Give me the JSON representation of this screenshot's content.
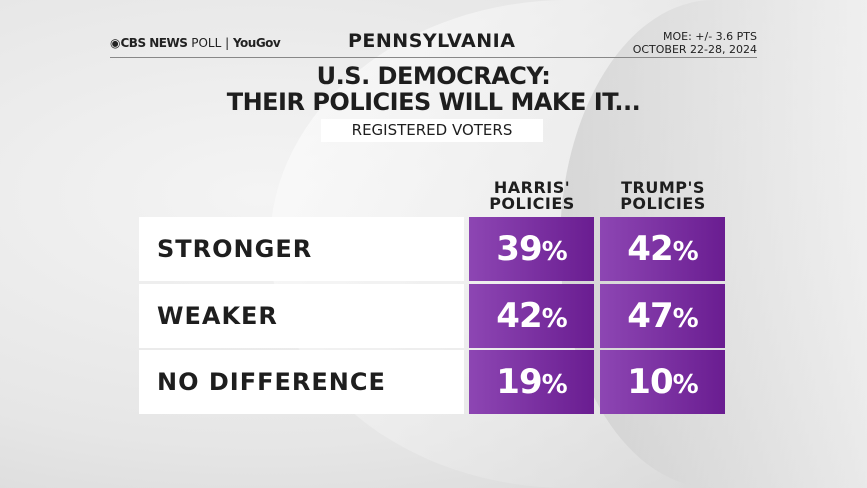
{
  "header": {
    "logo_cbs": "CBS NEWS",
    "logo_poll": "POLL",
    "logo_yougov": "YouGov",
    "state": "PENNSYLVANIA",
    "moe": "MOE: +/- 3.6 PTS",
    "dates": "OCTOBER 22-28, 2024"
  },
  "colors": {
    "cell_left": "#8d46b3",
    "cell_right": "#6a1d91"
  },
  "chart_data": {
    "type": "table",
    "title_line1": "U.S. DEMOCRACY:",
    "title_line2": "THEIR POLICIES WILL MAKE IT...",
    "subtitle": "REGISTERED VOTERS",
    "columns": [
      "HARRIS' POLICIES",
      "TRUMP'S POLICIES"
    ],
    "column_lines": [
      [
        "HARRIS'",
        "POLICIES"
      ],
      [
        "TRUMP'S",
        "POLICIES"
      ]
    ],
    "rows": [
      {
        "label": "STRONGER",
        "values": [
          "39",
          "42"
        ]
      },
      {
        "label": "WEAKER",
        "values": [
          "42",
          "47"
        ]
      },
      {
        "label": "NO DIFFERENCE",
        "values": [
          "19",
          "10"
        ]
      }
    ],
    "unit": "%"
  }
}
